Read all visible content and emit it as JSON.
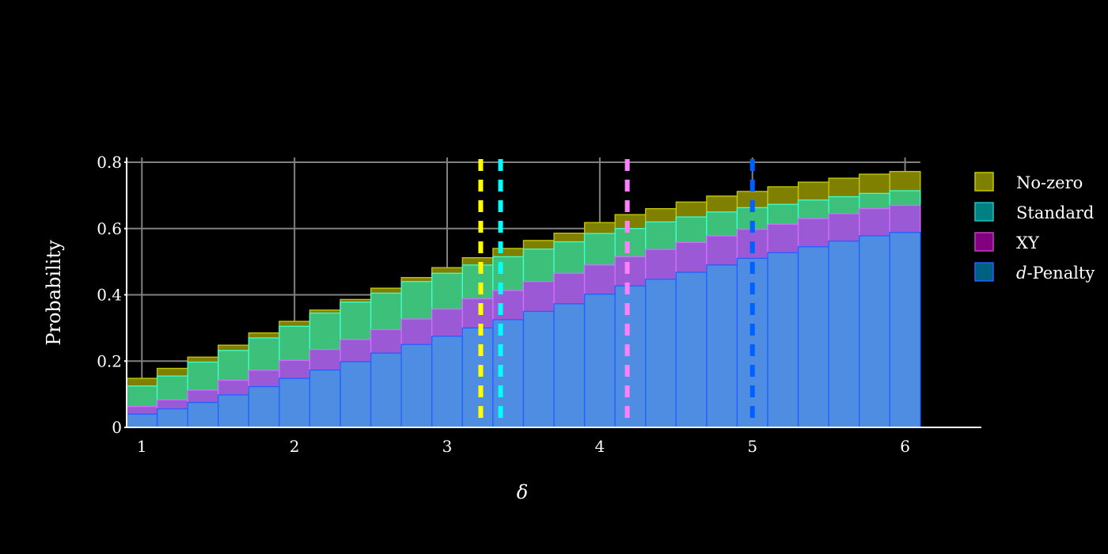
{
  "chart_data": {
    "type": "bar",
    "mode": "overlay",
    "xlabel": "δ",
    "ylabel": "Probability",
    "xlim": [
      0.9,
      6.5
    ],
    "ylim": [
      0,
      0.8
    ],
    "x_ticks": [
      1,
      2,
      3,
      4,
      5,
      6
    ],
    "y_ticks": [
      0,
      0.2,
      0.4,
      0.6,
      0.8
    ],
    "y_tick_labels": [
      "0",
      "0.2",
      "0.4",
      "0.6",
      "0.8"
    ],
    "grid": true,
    "legend_position": "right",
    "bin_width": 0.2,
    "bin_starts": [
      0.9,
      1.1,
      1.3,
      1.5,
      1.7,
      1.9,
      2.1,
      2.3,
      2.5,
      2.7,
      2.9,
      3.1,
      3.3,
      3.5,
      3.7,
      3.9,
      4.1,
      4.3,
      4.5,
      4.7,
      4.9,
      5.1,
      5.3,
      5.5,
      5.7,
      5.9
    ],
    "series": [
      {
        "name": "No-zero",
        "fill": "#808000",
        "stroke": "#c8c800",
        "values": [
          0.148,
          0.178,
          0.212,
          0.248,
          0.285,
          0.32,
          0.354,
          0.386,
          0.42,
          0.452,
          0.482,
          0.512,
          0.54,
          0.564,
          0.586,
          0.618,
          0.642,
          0.66,
          0.68,
          0.698,
          0.712,
          0.726,
          0.74,
          0.752,
          0.764,
          0.772
        ]
      },
      {
        "name": "Standard",
        "fill": "#3cc07a",
        "stroke": "#40ffd0",
        "values": [
          0.125,
          0.155,
          0.197,
          0.232,
          0.27,
          0.305,
          0.345,
          0.378,
          0.405,
          0.44,
          0.465,
          0.49,
          0.515,
          0.538,
          0.56,
          0.585,
          0.6,
          0.62,
          0.635,
          0.65,
          0.663,
          0.673,
          0.686,
          0.696,
          0.706,
          0.714
        ]
      },
      {
        "name": "XY",
        "fill": "#9b59d6",
        "stroke": "#d070ff",
        "values": [
          0.063,
          0.083,
          0.112,
          0.142,
          0.172,
          0.202,
          0.235,
          0.265,
          0.295,
          0.327,
          0.357,
          0.388,
          0.413,
          0.44,
          0.465,
          0.49,
          0.515,
          0.537,
          0.558,
          0.578,
          0.598,
          0.613,
          0.63,
          0.645,
          0.66,
          0.67
        ]
      },
      {
        "name": "d-Penalty",
        "fill": "#4a90e2",
        "stroke": "#2060ff",
        "values": [
          0.04,
          0.056,
          0.075,
          0.098,
          0.123,
          0.148,
          0.173,
          0.198,
          0.224,
          0.25,
          0.275,
          0.3,
          0.325,
          0.35,
          0.373,
          0.402,
          0.427,
          0.447,
          0.468,
          0.49,
          0.51,
          0.527,
          0.545,
          0.562,
          0.578,
          0.588
        ]
      }
    ],
    "vlines": [
      {
        "x": 3.22,
        "color": "#ffff00"
      },
      {
        "x": 3.35,
        "color": "#00ffff"
      },
      {
        "x": 4.18,
        "color": "#ff80ff"
      },
      {
        "x": 5.0,
        "color": "#0060ff"
      }
    ],
    "legend_swatches": [
      {
        "name": "No-zero",
        "fill": "#808000",
        "stroke": "#c8c800"
      },
      {
        "name": "Standard",
        "fill": "#008080",
        "stroke": "#20c0c0"
      },
      {
        "name": "XY",
        "fill": "#800080",
        "stroke": "#c040c0"
      },
      {
        "name": "d-Penalty",
        "fill": "#006080",
        "stroke": "#2060ff"
      }
    ]
  }
}
